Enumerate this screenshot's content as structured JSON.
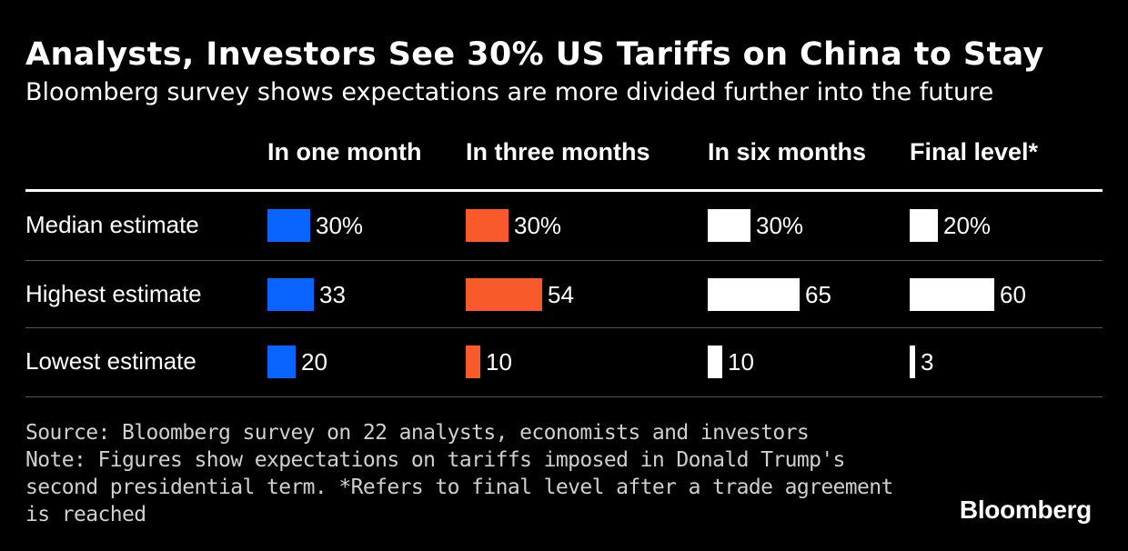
{
  "header": {
    "title": "Analysts, Investors See 30% US Tariffs on China to Stay",
    "subtitle": "Bloomberg survey shows expectations are more divided further into the future"
  },
  "chart_data": {
    "type": "table",
    "title": "Analysts, Investors See 30% US Tariffs on China to Stay",
    "subtitle": "Bloomberg survey shows expectations are more divided further into the future",
    "columns": [
      {
        "name": "In one month",
        "color": "#0a64ff"
      },
      {
        "name": "In three months",
        "color": "#f95a2c"
      },
      {
        "name": "In six months",
        "color": "#ffffff"
      },
      {
        "name": "Final level*",
        "color": "#ffffff"
      }
    ],
    "rows": [
      {
        "label": "Median estimate",
        "values": [
          30,
          30,
          30,
          20
        ],
        "display": [
          "30%",
          "30%",
          "30%",
          "20%"
        ]
      },
      {
        "label": "Highest estimate",
        "values": [
          33,
          54,
          65,
          60
        ],
        "display": [
          "33",
          "54",
          "65",
          "60"
        ]
      },
      {
        "label": "Lowest estimate",
        "values": [
          20,
          10,
          10,
          3
        ],
        "display": [
          "20",
          "10",
          "10",
          "3"
        ]
      }
    ],
    "unit": "%"
  },
  "footer": {
    "lines": [
      "Source: Bloomberg survey on 22 analysts, economists and investors",
      "Note: Figures show expectations on tariffs imposed in Donald Trump's",
      "second presidential term. *Refers to final level after a trade agreement",
      "is reached"
    ],
    "logo": "Bloomberg"
  }
}
